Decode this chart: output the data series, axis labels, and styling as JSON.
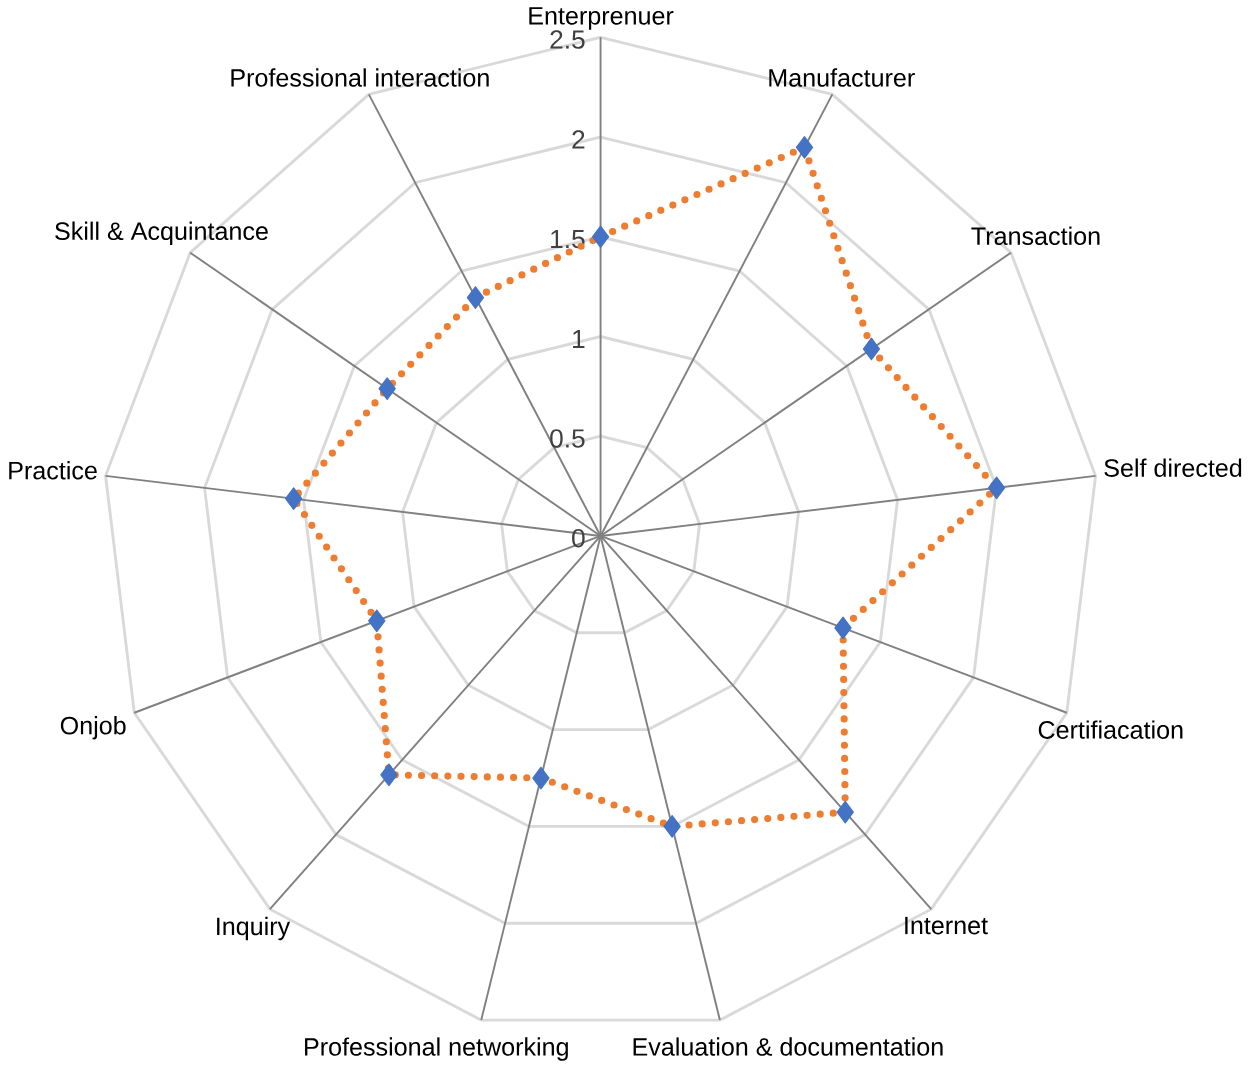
{
  "chart_data": {
    "type": "radar",
    "categories": [
      "Enterprenuer",
      "Manufacturer",
      "Transaction",
      "Self directed",
      "Certifiacation",
      "Internet",
      "Evaluation & documentation",
      "Professional networking",
      "Inquiry",
      "Onjob",
      "Practice",
      "Skill & Acquintance",
      "Professional interaction"
    ],
    "series": [
      {
        "color": "#ed7d31",
        "colors": [
          "#4472c4",
          "#4472c4",
          "#4472c4",
          "#4472c4",
          "#4472c4",
          "#4472c4",
          "#4472c4",
          "#4472c4",
          "#4472c4",
          "#4472c4",
          "#4472c4",
          "#4472c4",
          "#4472c4"
        ],
        "values": [
          1.5,
          2.2,
          1.65,
          2.0,
          1.3,
          1.85,
          1.5,
          1.25,
          1.6,
          1.2,
          1.55,
          1.3,
          1.35
        ]
      }
    ],
    "ylim": [
      0,
      2.5
    ],
    "yticks": [
      0,
      0.5,
      1,
      1.5,
      2,
      2.5
    ],
    "grid": true,
    "marker": "diamond",
    "line_style": "dotted"
  }
}
